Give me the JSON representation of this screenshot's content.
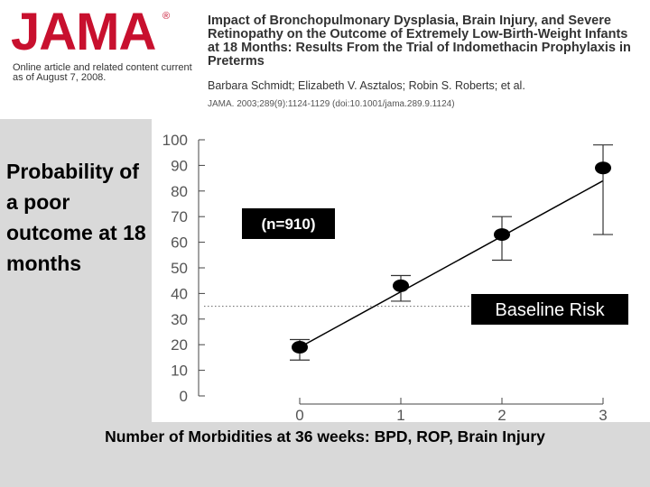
{
  "header": {
    "logo_text": "JAMA",
    "registered": "®",
    "online_note": "Online article and related content current as of August 7, 2008.",
    "article_title": "Impact of Bronchopulmonary Dysplasia, Brain Injury, and Severe Retinopathy on the Outcome of Extremely Low-Birth-Weight Infants at 18 Months: Results From the Trial of Indomethacin Prophylaxis in Preterms",
    "authors": "Barbara Schmidt; Elizabeth V. Asztalos; Robin S. Roberts; et al.",
    "citation": "JAMA. 2003;289(9):1124-1129 (doi:10.1001/jama.289.9.1124)"
  },
  "colors": {
    "logo": "#c8102e",
    "annotation_box": "#000000",
    "annotation_text": "#ffffff",
    "slide_background": "#d9d9d9"
  },
  "chart_data": {
    "type": "scatter",
    "ylabel": "Probability of a poor outcome at 18 months",
    "xlabel": "Number of Morbidities at 36 weeks: BPD, ROP, Brain Injury",
    "x_ticks": [
      "0",
      "1",
      "2",
      "3"
    ],
    "y_ticks": [
      "0",
      "10",
      "20",
      "30",
      "40",
      "50",
      "60",
      "70",
      "80",
      "90",
      "100"
    ],
    "ylim": [
      0,
      100
    ],
    "xlim": [
      -0.5,
      3.05
    ],
    "points": [
      {
        "x": 0,
        "y": 19,
        "lower": 14,
        "upper": 22
      },
      {
        "x": 1,
        "y": 43,
        "lower": 37,
        "upper": 47
      },
      {
        "x": 2,
        "y": 63,
        "lower": 53,
        "upper": 70
      },
      {
        "x": 3,
        "y": 89,
        "lower": 63,
        "upper": 98
      }
    ],
    "fit_line": [
      {
        "x": 0,
        "y": 19
      },
      {
        "x": 3,
        "y": 84
      }
    ],
    "baseline": {
      "y": 35,
      "label": "Baseline Risk"
    },
    "sample_label": "(n=910)",
    "grid": false
  }
}
